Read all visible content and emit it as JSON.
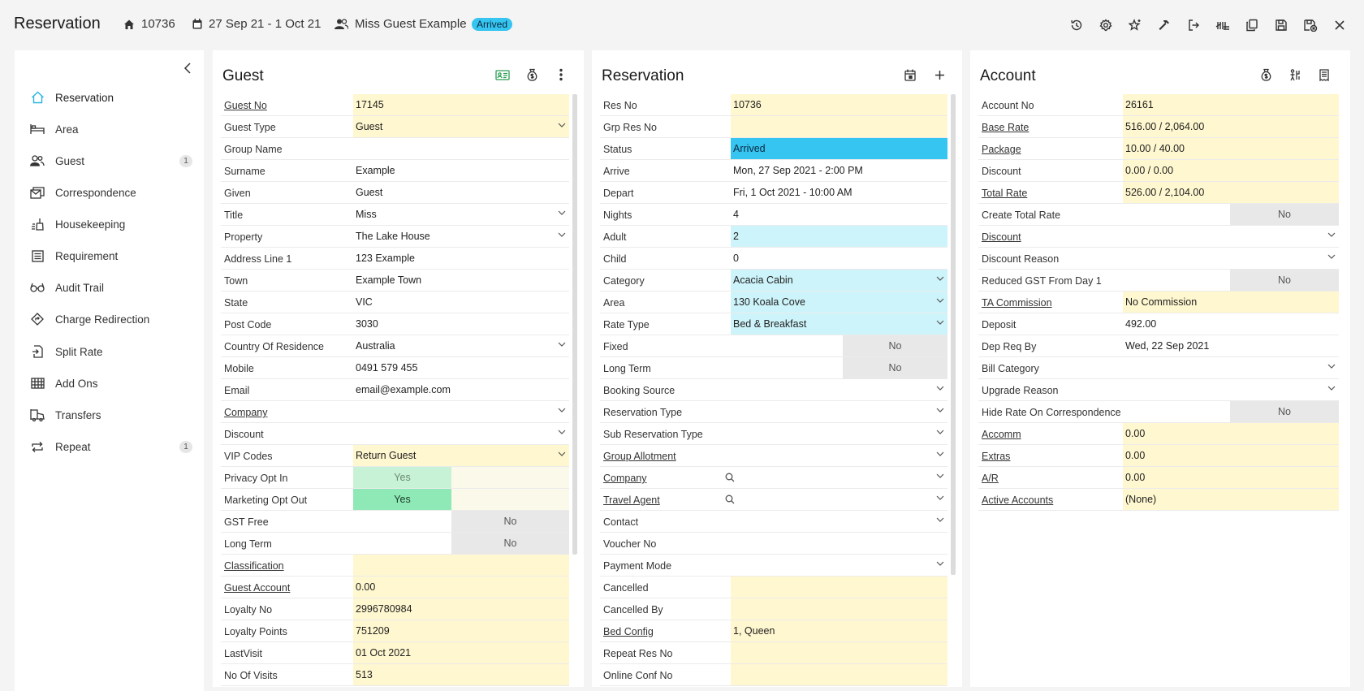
{
  "header": {
    "title": "Reservation",
    "res_no": "10736",
    "dates": "27 Sep 21  -  1 Oct 21",
    "guest": "Miss Guest Example",
    "status": "Arrived"
  },
  "nav": {
    "items": [
      {
        "label": "Reservation",
        "icon": "home-icon",
        "count": ""
      },
      {
        "label": "Area",
        "icon": "bed-icon",
        "count": ""
      },
      {
        "label": "Guest",
        "icon": "guest-icon",
        "count": "1"
      },
      {
        "label": "Correspondence",
        "icon": "correspondence-icon",
        "count": ""
      },
      {
        "label": "Housekeeping",
        "icon": "housekeeping-icon",
        "count": ""
      },
      {
        "label": "Requirement",
        "icon": "requirement-icon",
        "count": ""
      },
      {
        "label": "Audit Trail",
        "icon": "glasses-icon",
        "count": ""
      },
      {
        "label": "Charge Redirection",
        "icon": "redirect-icon",
        "count": ""
      },
      {
        "label": "Split Rate",
        "icon": "split-icon",
        "count": ""
      },
      {
        "label": "Add Ons",
        "icon": "addons-icon",
        "count": ""
      },
      {
        "label": "Transfers",
        "icon": "transfer-icon",
        "count": ""
      },
      {
        "label": "Repeat",
        "icon": "repeat-icon",
        "count": "1"
      }
    ]
  },
  "guest_panel": {
    "title": "Guest",
    "rows": [
      {
        "label": "Guest No",
        "value": "17145",
        "link": true,
        "bg": "yellow"
      },
      {
        "label": "Guest Type",
        "value": "Guest",
        "bg": "yellow",
        "dropdown": true
      },
      {
        "label": "Group Name",
        "value": ""
      },
      {
        "label": "Surname",
        "value": "Example"
      },
      {
        "label": "Given",
        "value": "Guest"
      },
      {
        "label": "Title",
        "value": "Miss",
        "dropdown": true
      },
      {
        "label": "Property",
        "value": "The Lake House",
        "dropdown": true
      },
      {
        "label": "Address Line 1",
        "value": "123 Example"
      },
      {
        "label": "Town",
        "value": "Example Town"
      },
      {
        "label": "State",
        "value": "VIC"
      },
      {
        "label": "Post Code",
        "value": "3030"
      },
      {
        "label": "Country Of Residence",
        "value": "Australia",
        "dropdown": true
      },
      {
        "label": "Mobile",
        "value": "0491 579 455"
      },
      {
        "label": "Email",
        "value": "email@example.com"
      },
      {
        "label": "Company",
        "value": "",
        "link": true,
        "dropdown": true
      },
      {
        "label": "Discount",
        "value": "",
        "dropdown": true
      },
      {
        "label": "VIP Codes",
        "value": "Return Guest",
        "bg": "yellow",
        "dropdown": true
      },
      {
        "label": "Privacy Opt In",
        "toggle": "Yes",
        "toggle_style": "yes-light"
      },
      {
        "label": "Marketing Opt Out",
        "toggle": "Yes",
        "toggle_style": "yes"
      },
      {
        "label": "GST Free",
        "toggle": "No",
        "toggle_style": "no"
      },
      {
        "label": "Long Term",
        "toggle": "No",
        "toggle_style": "no"
      },
      {
        "label": "Classification",
        "value": "",
        "link": true,
        "bg": "yellow"
      },
      {
        "label": "Guest Account",
        "value": "0.00",
        "link": true,
        "bg": "yellow"
      },
      {
        "label": "Loyalty No",
        "value": "2996780984",
        "bg": "yellow"
      },
      {
        "label": "Loyalty Points",
        "value": "751209",
        "bg": "yellow"
      },
      {
        "label": "LastVisit",
        "value": "01 Oct 2021",
        "bg": "yellow"
      },
      {
        "label": "No Of Visits",
        "value": "513",
        "bg": "yellow"
      }
    ]
  },
  "reservation_panel": {
    "title": "Reservation",
    "rows": [
      {
        "label": "Res No",
        "value": "10736",
        "bg": "yellow"
      },
      {
        "label": "Grp Res No",
        "value": "",
        "bg": "yellow"
      },
      {
        "label": "Status",
        "value": "Arrived",
        "bg": "blue"
      },
      {
        "label": "Arrive",
        "value": "Mon, 27 Sep 2021 - 2:00 PM"
      },
      {
        "label": "Depart",
        "value": "Fri, 1 Oct 2021 - 10:00 AM"
      },
      {
        "label": "Nights",
        "value": "4"
      },
      {
        "label": "Adult",
        "value": "2",
        "bg": "cyan"
      },
      {
        "label": "Child",
        "value": "0"
      },
      {
        "label": "Category",
        "value": "Acacia Cabin",
        "bg": "cyan",
        "dropdown": true
      },
      {
        "label": "Area",
        "value": "130 Koala Cove",
        "bg": "cyan",
        "dropdown": true
      },
      {
        "label": "Rate Type",
        "value": "Bed & Breakfast",
        "bg": "cyan",
        "dropdown": true
      },
      {
        "label": "Fixed",
        "toggle": "No",
        "toggle_style": "no"
      },
      {
        "label": "Long Term",
        "toggle": "No",
        "toggle_style": "no"
      },
      {
        "label": "Booking Source",
        "value": "",
        "dropdown": true
      },
      {
        "label": "Reservation Type",
        "value": "",
        "dropdown": true
      },
      {
        "label": "Sub Reservation Type",
        "value": "",
        "dropdown": true
      },
      {
        "label": "Group Allotment",
        "value": "",
        "link": true,
        "dropdown": true
      },
      {
        "label": "Company",
        "value": "",
        "link": true,
        "dropdown": true,
        "search": true
      },
      {
        "label": "Travel Agent",
        "value": "",
        "link": true,
        "dropdown": true,
        "search": true
      },
      {
        "label": "Contact",
        "value": "",
        "dropdown": true
      },
      {
        "label": "Voucher No",
        "value": ""
      },
      {
        "label": "Payment Mode",
        "value": "",
        "dropdown": true
      },
      {
        "label": "Cancelled",
        "value": "",
        "bg": "yellow"
      },
      {
        "label": "Cancelled By",
        "value": "",
        "bg": "yellow"
      },
      {
        "label": "Bed Config",
        "value": "1, Queen",
        "link": true,
        "bg": "yellow"
      },
      {
        "label": "Repeat Res No",
        "value": "",
        "bg": "yellow"
      },
      {
        "label": "Online Conf No",
        "value": "",
        "bg": "yellow"
      }
    ]
  },
  "account_panel": {
    "title": "Account",
    "rows": [
      {
        "label": "Account No",
        "value": "26161",
        "bg": "yellow"
      },
      {
        "label": "Base Rate",
        "value": "516.00 / 2,064.00",
        "link": true,
        "bg": "yellow"
      },
      {
        "label": "Package",
        "value": "10.00 / 40.00",
        "link": true,
        "bg": "yellow"
      },
      {
        "label": "Discount",
        "value": "0.00 / 0.00",
        "bg": "yellow"
      },
      {
        "label": "Total Rate",
        "value": "526.00 / 2,104.00",
        "link": true,
        "bg": "yellow"
      },
      {
        "label": "Create Total Rate",
        "toggle": "No",
        "toggle_style": "no"
      },
      {
        "label": "Discount",
        "value": "",
        "link": true,
        "dropdown": true
      },
      {
        "label": "Discount Reason",
        "value": "",
        "dropdown": true
      },
      {
        "label": "Reduced GST From Day 1",
        "toggle": "No",
        "toggle_style": "no"
      },
      {
        "label": "TA Commission",
        "value": "No Commission",
        "link": true,
        "bg": "yellow"
      },
      {
        "label": "Deposit",
        "value": "492.00"
      },
      {
        "label": "Dep Req By",
        "value": "Wed, 22 Sep 2021"
      },
      {
        "label": "Bill Category",
        "value": "",
        "dropdown": true
      },
      {
        "label": "Upgrade Reason",
        "value": "",
        "dropdown": true
      },
      {
        "label": "Hide Rate On Correspondence",
        "toggle": "No",
        "toggle_style": "no"
      },
      {
        "label": "Accomm",
        "value": "0.00",
        "link": true,
        "bg": "yellow"
      },
      {
        "label": "Extras",
        "value": "0.00",
        "link": true,
        "bg": "yellow"
      },
      {
        "label": "A/R",
        "value": "0.00",
        "link": true,
        "bg": "yellow"
      },
      {
        "label": "Active Accounts",
        "value": "(None)",
        "link": true,
        "bg": "yellow"
      }
    ]
  }
}
